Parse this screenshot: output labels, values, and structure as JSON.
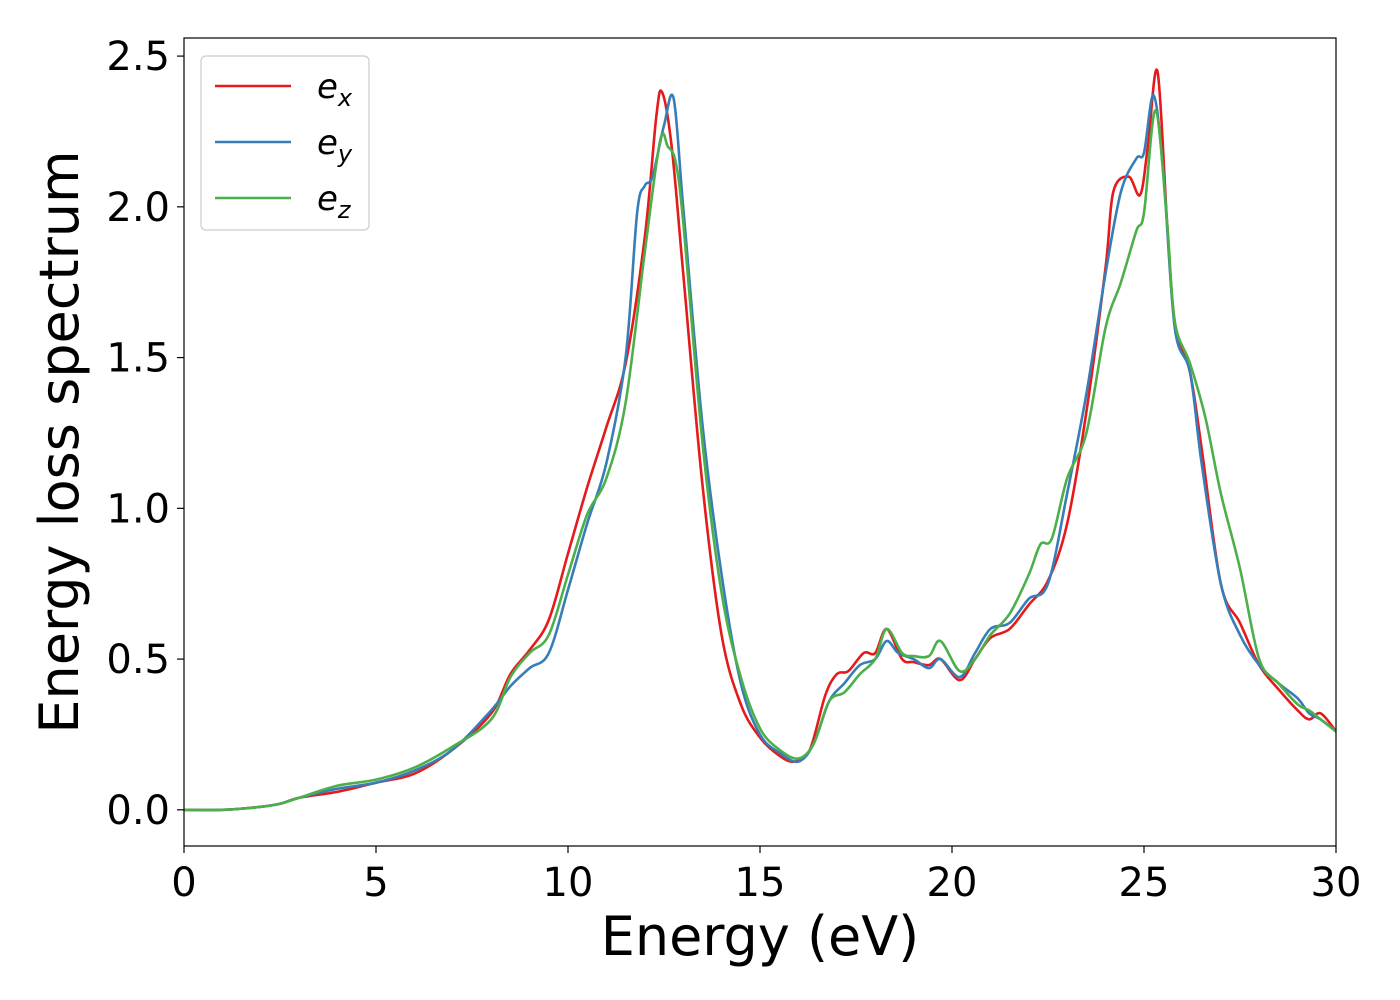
{
  "chart_data": {
    "type": "line",
    "title": "",
    "xlabel": "Energy (eV)",
    "ylabel": "Energy loss spectrum",
    "xlim": [
      0,
      30
    ],
    "ylim": [
      -0.12,
      2.56
    ],
    "xticks": [
      0,
      5,
      10,
      15,
      20,
      25,
      30
    ],
    "yticks": [
      0.0,
      0.5,
      1.0,
      1.5,
      2.0,
      2.5
    ],
    "xtick_labels": [
      "0",
      "5",
      "10",
      "15",
      "20",
      "25",
      "30"
    ],
    "ytick_labels": [
      "0.0",
      "0.5",
      "1.0",
      "1.5",
      "2.0",
      "2.5"
    ],
    "grid": false,
    "legend_position": "top-left",
    "series": [
      {
        "name": "e",
        "subscript": "x",
        "color": "#e41a1c",
        "points": [
          [
            0,
            0.0
          ],
          [
            1,
            0.0
          ],
          [
            2,
            0.01
          ],
          [
            2.5,
            0.02
          ],
          [
            3,
            0.04
          ],
          [
            4,
            0.06
          ],
          [
            5,
            0.09
          ],
          [
            6,
            0.12
          ],
          [
            7,
            0.2
          ],
          [
            8,
            0.32
          ],
          [
            8.5,
            0.45
          ],
          [
            9,
            0.53
          ],
          [
            9.5,
            0.63
          ],
          [
            10,
            0.85
          ],
          [
            10.5,
            1.07
          ],
          [
            11,
            1.27
          ],
          [
            11.5,
            1.48
          ],
          [
            12,
            1.9
          ],
          [
            12.3,
            2.3
          ],
          [
            12.45,
            2.38
          ],
          [
            12.7,
            2.2
          ],
          [
            13,
            1.78
          ],
          [
            13.5,
            1.08
          ],
          [
            14,
            0.58
          ],
          [
            14.5,
            0.35
          ],
          [
            15,
            0.24
          ],
          [
            15.5,
            0.18
          ],
          [
            15.9,
            0.16
          ],
          [
            16.3,
            0.2
          ],
          [
            16.7,
            0.38
          ],
          [
            17,
            0.45
          ],
          [
            17.3,
            0.46
          ],
          [
            17.7,
            0.52
          ],
          [
            18,
            0.52
          ],
          [
            18.3,
            0.6
          ],
          [
            18.7,
            0.5
          ],
          [
            19,
            0.49
          ],
          [
            19.4,
            0.48
          ],
          [
            19.7,
            0.5
          ],
          [
            20.2,
            0.43
          ],
          [
            20.6,
            0.5
          ],
          [
            21,
            0.57
          ],
          [
            21.5,
            0.6
          ],
          [
            22,
            0.68
          ],
          [
            22.5,
            0.76
          ],
          [
            23,
            0.95
          ],
          [
            23.5,
            1.32
          ],
          [
            24,
            1.8
          ],
          [
            24.2,
            2.05
          ],
          [
            24.6,
            2.1
          ],
          [
            24.9,
            2.04
          ],
          [
            25.1,
            2.2
          ],
          [
            25.35,
            2.45
          ],
          [
            25.6,
            1.95
          ],
          [
            25.8,
            1.62
          ],
          [
            26.2,
            1.45
          ],
          [
            26.5,
            1.2
          ],
          [
            27,
            0.75
          ],
          [
            27.5,
            0.62
          ],
          [
            28,
            0.48
          ],
          [
            28.5,
            0.4
          ],
          [
            29,
            0.33
          ],
          [
            29.3,
            0.3
          ],
          [
            29.6,
            0.32
          ],
          [
            30,
            0.26
          ]
        ]
      },
      {
        "name": "e",
        "subscript": "y",
        "color": "#377eb8",
        "points": [
          [
            0,
            0.0
          ],
          [
            1,
            0.0
          ],
          [
            2,
            0.01
          ],
          [
            2.5,
            0.02
          ],
          [
            3,
            0.04
          ],
          [
            4,
            0.07
          ],
          [
            5,
            0.09
          ],
          [
            6,
            0.13
          ],
          [
            7,
            0.2
          ],
          [
            8,
            0.33
          ],
          [
            8.5,
            0.41
          ],
          [
            9,
            0.47
          ],
          [
            9.5,
            0.52
          ],
          [
            10,
            0.73
          ],
          [
            10.5,
            0.95
          ],
          [
            11,
            1.15
          ],
          [
            11.5,
            1.5
          ],
          [
            11.8,
            1.98
          ],
          [
            12,
            2.07
          ],
          [
            12.2,
            2.1
          ],
          [
            12.5,
            2.27
          ],
          [
            12.75,
            2.36
          ],
          [
            13,
            2.0
          ],
          [
            13.5,
            1.28
          ],
          [
            14,
            0.78
          ],
          [
            14.5,
            0.42
          ],
          [
            15,
            0.25
          ],
          [
            15.5,
            0.19
          ],
          [
            16,
            0.16
          ],
          [
            16.4,
            0.22
          ],
          [
            16.8,
            0.36
          ],
          [
            17.2,
            0.42
          ],
          [
            17.6,
            0.48
          ],
          [
            18,
            0.5
          ],
          [
            18.3,
            0.56
          ],
          [
            18.6,
            0.52
          ],
          [
            19,
            0.5
          ],
          [
            19.4,
            0.47
          ],
          [
            19.7,
            0.5
          ],
          [
            20.2,
            0.44
          ],
          [
            20.6,
            0.52
          ],
          [
            21,
            0.6
          ],
          [
            21.5,
            0.62
          ],
          [
            22,
            0.7
          ],
          [
            22.5,
            0.75
          ],
          [
            23,
            1.05
          ],
          [
            23.5,
            1.38
          ],
          [
            24,
            1.78
          ],
          [
            24.4,
            2.05
          ],
          [
            24.8,
            2.16
          ],
          [
            25,
            2.18
          ],
          [
            25.25,
            2.37
          ],
          [
            25.5,
            2.12
          ],
          [
            25.8,
            1.6
          ],
          [
            26.2,
            1.45
          ],
          [
            26.5,
            1.15
          ],
          [
            27,
            0.75
          ],
          [
            27.5,
            0.58
          ],
          [
            28,
            0.48
          ],
          [
            28.5,
            0.42
          ],
          [
            29,
            0.37
          ],
          [
            29.3,
            0.32
          ],
          [
            29.6,
            0.3
          ],
          [
            30,
            0.26
          ]
        ]
      },
      {
        "name": "e",
        "subscript": "z",
        "color": "#4daf4a",
        "points": [
          [
            0,
            0.0
          ],
          [
            1,
            0.0
          ],
          [
            2,
            0.01
          ],
          [
            2.5,
            0.02
          ],
          [
            3,
            0.04
          ],
          [
            4,
            0.08
          ],
          [
            5,
            0.1
          ],
          [
            6,
            0.14
          ],
          [
            7,
            0.21
          ],
          [
            8,
            0.3
          ],
          [
            8.5,
            0.44
          ],
          [
            9,
            0.52
          ],
          [
            9.5,
            0.58
          ],
          [
            10,
            0.78
          ],
          [
            10.5,
            0.98
          ],
          [
            11,
            1.1
          ],
          [
            11.5,
            1.35
          ],
          [
            12,
            1.85
          ],
          [
            12.4,
            2.22
          ],
          [
            12.6,
            2.2
          ],
          [
            12.8,
            2.15
          ],
          [
            13,
            1.95
          ],
          [
            13.5,
            1.22
          ],
          [
            14,
            0.72
          ],
          [
            14.5,
            0.44
          ],
          [
            15,
            0.27
          ],
          [
            15.5,
            0.2
          ],
          [
            16,
            0.17
          ],
          [
            16.4,
            0.22
          ],
          [
            16.8,
            0.36
          ],
          [
            17.2,
            0.39
          ],
          [
            17.6,
            0.45
          ],
          [
            18,
            0.5
          ],
          [
            18.3,
            0.6
          ],
          [
            18.7,
            0.52
          ],
          [
            19,
            0.51
          ],
          [
            19.4,
            0.51
          ],
          [
            19.7,
            0.56
          ],
          [
            20.2,
            0.46
          ],
          [
            20.6,
            0.5
          ],
          [
            21,
            0.58
          ],
          [
            21.5,
            0.65
          ],
          [
            22,
            0.78
          ],
          [
            22.3,
            0.88
          ],
          [
            22.6,
            0.9
          ],
          [
            23,
            1.1
          ],
          [
            23.5,
            1.25
          ],
          [
            24,
            1.6
          ],
          [
            24.4,
            1.75
          ],
          [
            24.8,
            1.92
          ],
          [
            25,
            1.98
          ],
          [
            25.3,
            2.32
          ],
          [
            25.6,
            1.95
          ],
          [
            25.8,
            1.62
          ],
          [
            26.2,
            1.48
          ],
          [
            26.6,
            1.3
          ],
          [
            27,
            1.05
          ],
          [
            27.5,
            0.8
          ],
          [
            28,
            0.5
          ],
          [
            28.5,
            0.42
          ],
          [
            29,
            0.35
          ],
          [
            29.3,
            0.33
          ],
          [
            29.6,
            0.3
          ],
          [
            30,
            0.26
          ]
        ]
      }
    ]
  }
}
